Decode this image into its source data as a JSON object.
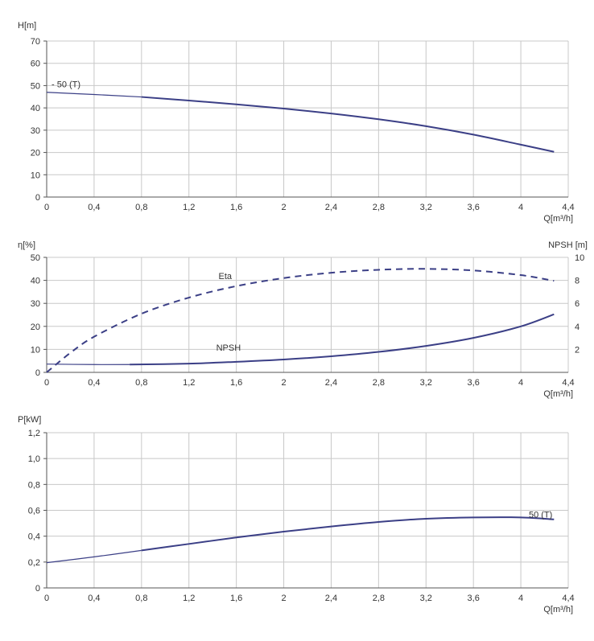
{
  "chart_data": [
    {
      "type": "line",
      "ylabel": "H[m]",
      "xlabel": "Q[m³/h]",
      "x_ticks": [
        "0",
        "0,4",
        "0,8",
        "1,2",
        "1,6",
        "2",
        "2,4",
        "2,8",
        "3,2",
        "3,6",
        "4",
        "4,4"
      ],
      "y_ticks": [
        "0",
        "10",
        "20",
        "30",
        "40",
        "50",
        "60",
        "70"
      ],
      "xlim": [
        0,
        4.4
      ],
      "ylim": [
        0,
        70
      ],
      "grid": true,
      "series": [
        {
          "name": "- 50 (T)",
          "thin_until": 0.8,
          "x": [
            0,
            0.4,
            0.8,
            1.2,
            1.6,
            2.0,
            2.4,
            2.8,
            3.2,
            3.6,
            4.0,
            4.28
          ],
          "y": [
            47.0,
            46.0,
            44.9,
            43.3,
            41.6,
            39.7,
            37.5,
            34.9,
            31.8,
            28.0,
            23.5,
            20.3
          ]
        }
      ]
    },
    {
      "type": "line",
      "ylabel": "η[%]",
      "ylabel_right": "NPSH [m]",
      "xlabel": "Q[m³/h]",
      "x_ticks": [
        "0",
        "0,4",
        "0,8",
        "1,2",
        "1,6",
        "2",
        "2,4",
        "2,8",
        "3,2",
        "3,6",
        "4",
        "4,4"
      ],
      "y_ticks": [
        "0",
        "10",
        "20",
        "30",
        "40",
        "50"
      ],
      "y_right_ticks": [
        "2",
        "4",
        "6",
        "8",
        "10"
      ],
      "xlim": [
        0,
        4.4
      ],
      "ylim": [
        0,
        50
      ],
      "ylim_right": [
        0,
        10
      ],
      "grid": true,
      "series": [
        {
          "name": "Eta",
          "axis": "left",
          "dashed": true,
          "x": [
            0,
            0.2,
            0.4,
            0.8,
            1.2,
            1.6,
            2.0,
            2.4,
            2.8,
            3.2,
            3.6,
            4.0,
            4.28
          ],
          "y": [
            0,
            8.5,
            15.5,
            25.5,
            32.5,
            37.5,
            41.0,
            43.3,
            44.6,
            45.0,
            44.3,
            42.3,
            39.8
          ]
        },
        {
          "name": "NPSH",
          "axis": "right",
          "dashed": false,
          "thin_until": 0.7,
          "x": [
            0,
            0.4,
            0.7,
            1.2,
            1.6,
            2.0,
            2.4,
            2.8,
            3.2,
            3.6,
            4.0,
            4.28
          ],
          "y": [
            0.72,
            0.68,
            0.68,
            0.76,
            0.92,
            1.12,
            1.4,
            1.78,
            2.3,
            3.0,
            4.0,
            5.05
          ]
        }
      ]
    },
    {
      "type": "line",
      "ylabel": "P[kW]",
      "xlabel": "Q[m³/h]",
      "x_ticks": [
        "0",
        "0,4",
        "0,8",
        "1,2",
        "1,6",
        "2",
        "2,4",
        "2,8",
        "3,2",
        "3,6",
        "4",
        "4,4"
      ],
      "y_ticks": [
        "0",
        "0,2",
        "0,4",
        "0,6",
        "0,8",
        "1,0",
        "1,2"
      ],
      "xlim": [
        0,
        4.4
      ],
      "ylim": [
        0,
        1.2
      ],
      "grid": true,
      "series": [
        {
          "name": "50 (T)",
          "thin_until": 0.8,
          "x": [
            0,
            0.4,
            0.8,
            1.2,
            1.6,
            2.0,
            2.4,
            2.8,
            3.2,
            3.6,
            4.0,
            4.28
          ],
          "y": [
            0.195,
            0.24,
            0.29,
            0.34,
            0.39,
            0.435,
            0.475,
            0.51,
            0.535,
            0.545,
            0.545,
            0.53
          ]
        }
      ]
    }
  ],
  "colors": {
    "curve": "#3b3f86",
    "grid": "#c8c8c8",
    "axis": "#555555",
    "text": "#333333"
  }
}
